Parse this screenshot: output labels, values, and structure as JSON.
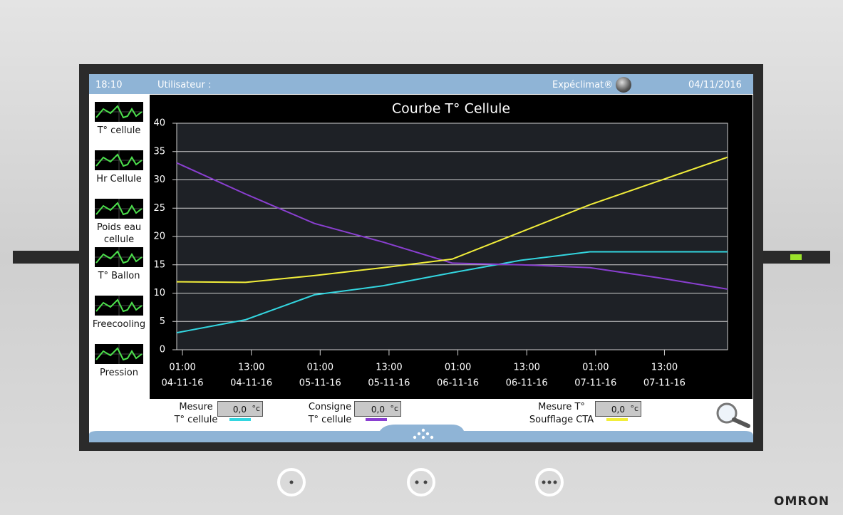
{
  "header": {
    "time": "18:10",
    "user_label": "Utilisateur :",
    "brand": "Expéclimat®",
    "date": "04/11/2016"
  },
  "sidebar": {
    "items": [
      "T° cellule",
      "Hr Cellule",
      "Poids eau\ncellule",
      "T° Ballon",
      "Freecooling",
      "Pression"
    ]
  },
  "chart_data": {
    "type": "line",
    "title": "Courbe T° Cellule",
    "x": [
      0,
      12,
      24,
      36,
      48,
      60,
      72,
      84,
      96
    ],
    "xlim": [
      0,
      96
    ],
    "xticks": [
      {
        "value": 1,
        "label": [
          "01:00",
          "04-11-16"
        ]
      },
      {
        "value": 13,
        "label": [
          "13:00",
          "04-11-16"
        ]
      },
      {
        "value": 25,
        "label": [
          "01:00",
          "05-11-16"
        ]
      },
      {
        "value": 37,
        "label": [
          "13:00",
          "05-11-16"
        ]
      },
      {
        "value": 49,
        "label": [
          "01:00",
          "06-11-16"
        ]
      },
      {
        "value": 61,
        "label": [
          "13:00",
          "06-11-16"
        ]
      },
      {
        "value": 73,
        "label": [
          "01:00",
          "07-11-16"
        ]
      },
      {
        "value": 85,
        "label": [
          "13:00",
          "07-11-16"
        ]
      }
    ],
    "ylim": [
      0,
      40
    ],
    "yticks": [
      0,
      5,
      10,
      15,
      20,
      25,
      30,
      35,
      40
    ],
    "grid": true,
    "series": [
      {
        "name": "Mesure\nT° cellule",
        "color": "#33d6e0",
        "values": [
          3,
          5.3,
          9.7,
          11.3,
          13.6,
          15.8,
          17.3,
          17.3,
          17.3
        ]
      },
      {
        "name": "Consigne\nT° cellule",
        "color": "#8a3fd1",
        "values": [
          33,
          27.5,
          22.3,
          19,
          15.3,
          15,
          14.5,
          12.7,
          10.7
        ]
      },
      {
        "name": "Mesure T°\nSoufflage CTA",
        "color": "#f2ee3a",
        "values": [
          12,
          11.9,
          13.1,
          14.5,
          16,
          20.8,
          25.6,
          29.8,
          34
        ]
      }
    ]
  },
  "readouts": [
    {
      "value": "0,0",
      "unit": "°c"
    },
    {
      "value": "0,0",
      "unit": "°c"
    },
    {
      "value": "0,0",
      "unit": "°c"
    }
  ],
  "footer": {
    "logo": "OMRON"
  }
}
